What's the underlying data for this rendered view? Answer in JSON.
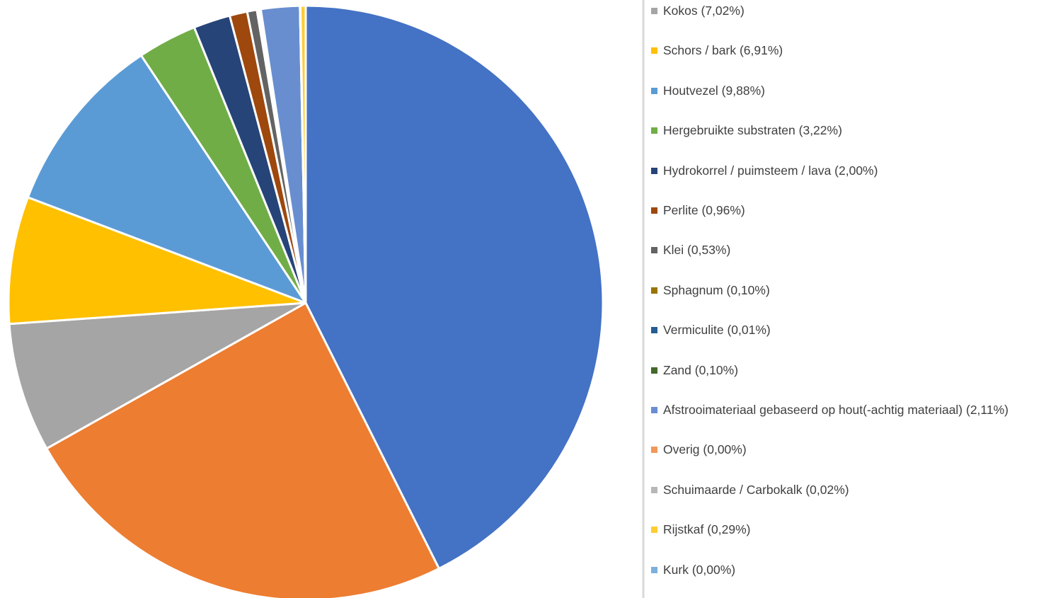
{
  "chart_data": {
    "type": "pie",
    "categories": [
      null,
      null,
      "Kokos (7,02%)",
      "Schors / bark (6,91%)",
      "Houtvezel (9,88%)",
      "Hergebruikte substraten (3,22%)",
      "Hydrokorrel / puimsteem / lava (2,00%)",
      "Perlite (0,96%)",
      "Klei (0,53%)",
      "Sphagnum (0,10%)",
      "Vermiculite (0,01%)",
      "Zand (0,10%)",
      "Afstrooimateriaal gebaseerd op hout(-achtig materiaal) (2,11%)",
      "Overig (0,00%)",
      "Schuimaarde / Carbokalk (0,02%)",
      "Rijstkaf (0,29%)",
      "Kurk (0,00%)"
    ],
    "values": [
      42.6,
      24.25,
      7.02,
      6.91,
      9.88,
      3.22,
      2.0,
      0.96,
      0.53,
      0.1,
      0.01,
      0.1,
      2.11,
      0.0,
      0.02,
      0.29,
      0.0
    ],
    "colors": [
      "#4472C4",
      "#ED7D31",
      "#A5A5A5",
      "#FFC000",
      "#5B9BD5",
      "#70AD47",
      "#264478",
      "#9E480E",
      "#636363",
      "#997300",
      "#255E91",
      "#43682B",
      "#698ED0",
      "#F1975A",
      "#B7B7B7",
      "#FFCD33",
      "#7CAFDD"
    ],
    "legend": "right"
  }
}
